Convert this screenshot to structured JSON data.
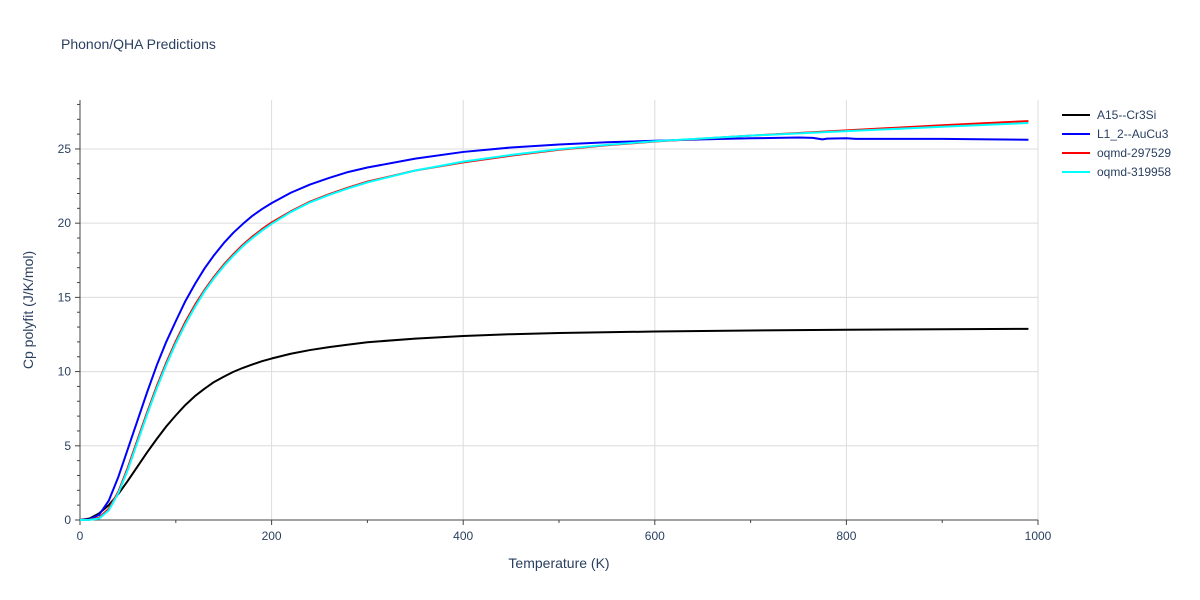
{
  "page": {
    "title": "Phonon/QHA Predictions"
  },
  "chart_data": {
    "type": "line",
    "title": "Phonon/QHA Predictions",
    "xlabel": "Temperature (K)",
    "ylabel": "Cp polyfit (J/K/mol)",
    "xlim": [
      0,
      1000
    ],
    "ylim": [
      0,
      28.3
    ],
    "xticks": [
      0,
      200,
      400,
      600,
      800,
      1000
    ],
    "yticks": [
      0,
      5,
      10,
      15,
      20,
      25
    ],
    "grid": true,
    "legend_position": "top-right",
    "series": [
      {
        "name": "A15--Cr3Si",
        "color": "#000000",
        "x": [
          0,
          10,
          20,
          30,
          40,
          50,
          60,
          70,
          80,
          90,
          100,
          110,
          120,
          130,
          140,
          150,
          160,
          170,
          180,
          190,
          200,
          220,
          240,
          260,
          280,
          300,
          350,
          400,
          450,
          500,
          600,
          700,
          800,
          900,
          990
        ],
        "y": [
          0,
          0.1,
          0.45,
          1.0,
          1.75,
          2.65,
          3.6,
          4.55,
          5.45,
          6.3,
          7.05,
          7.75,
          8.35,
          8.85,
          9.3,
          9.65,
          9.98,
          10.25,
          10.48,
          10.7,
          10.88,
          11.2,
          11.45,
          11.65,
          11.82,
          11.98,
          12.22,
          12.4,
          12.52,
          12.6,
          12.7,
          12.77,
          12.82,
          12.85,
          12.88
        ]
      },
      {
        "name": "L1_2--AuCu3",
        "color": "#0000ff",
        "x": [
          0,
          10,
          20,
          30,
          40,
          50,
          60,
          70,
          80,
          90,
          100,
          110,
          120,
          130,
          140,
          150,
          160,
          170,
          180,
          190,
          200,
          220,
          240,
          260,
          280,
          300,
          350,
          400,
          450,
          500,
          550,
          600,
          650,
          700,
          750,
          765,
          775,
          780,
          800,
          810,
          850,
          900,
          950,
          990
        ],
        "y": [
          0,
          0.05,
          0.35,
          1.3,
          2.9,
          4.8,
          6.7,
          8.6,
          10.4,
          12.0,
          13.4,
          14.75,
          15.9,
          16.95,
          17.85,
          18.65,
          19.35,
          19.95,
          20.5,
          20.95,
          21.35,
          22.05,
          22.6,
          23.05,
          23.45,
          23.75,
          24.35,
          24.8,
          25.1,
          25.3,
          25.45,
          25.55,
          25.65,
          25.72,
          25.77,
          25.75,
          25.65,
          25.7,
          25.72,
          25.68,
          25.68,
          25.68,
          25.65,
          25.62
        ]
      },
      {
        "name": "oqmd-297529",
        "color": "#ff0000",
        "x": [
          0,
          10,
          20,
          30,
          40,
          50,
          60,
          70,
          80,
          90,
          100,
          110,
          120,
          130,
          140,
          150,
          160,
          170,
          180,
          190,
          200,
          220,
          240,
          260,
          280,
          300,
          350,
          400,
          450,
          500,
          550,
          600,
          700,
          800,
          900,
          990
        ],
        "y": [
          0,
          0.02,
          0.15,
          0.75,
          1.9,
          3.55,
          5.4,
          7.25,
          9.0,
          10.6,
          12.05,
          13.35,
          14.5,
          15.5,
          16.4,
          17.2,
          17.9,
          18.55,
          19.1,
          19.6,
          20.05,
          20.8,
          21.45,
          21.95,
          22.4,
          22.8,
          23.55,
          24.1,
          24.55,
          24.95,
          25.25,
          25.5,
          25.9,
          26.25,
          26.6,
          26.88
        ]
      },
      {
        "name": "oqmd-319958",
        "color": "#00ffff",
        "x": [
          0,
          10,
          20,
          30,
          40,
          50,
          60,
          70,
          80,
          90,
          100,
          110,
          120,
          130,
          140,
          150,
          160,
          170,
          180,
          190,
          200,
          220,
          240,
          260,
          280,
          300,
          350,
          400,
          450,
          500,
          550,
          600,
          700,
          800,
          900,
          990
        ],
        "y": [
          0,
          0.01,
          0.1,
          0.65,
          1.8,
          3.4,
          5.25,
          7.1,
          8.85,
          10.45,
          11.9,
          13.2,
          14.35,
          15.4,
          16.3,
          17.1,
          17.8,
          18.45,
          19.0,
          19.5,
          19.95,
          20.75,
          21.4,
          21.9,
          22.35,
          22.75,
          23.55,
          24.15,
          24.6,
          24.98,
          25.28,
          25.52,
          25.9,
          26.2,
          26.5,
          26.75
        ]
      }
    ]
  }
}
